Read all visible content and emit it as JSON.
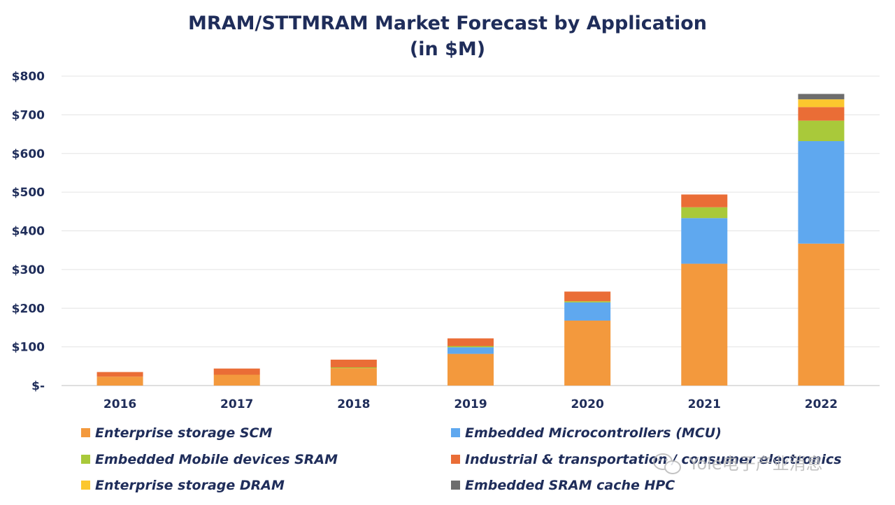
{
  "chart_data": {
    "type": "bar",
    "stacked": true,
    "title": "MRAM/STTMRAM Market Forecast by Application",
    "subtitle": "(in $M)",
    "categories": [
      "2016",
      "2017",
      "2018",
      "2019",
      "2020",
      "2021",
      "2022"
    ],
    "ylim": [
      0,
      800
    ],
    "yticks": [
      0,
      100,
      200,
      300,
      400,
      500,
      600,
      700,
      800
    ],
    "ytick_labels": [
      "$-",
      "$100",
      "$200",
      "$300",
      "$400",
      "$500",
      "$600",
      "$700",
      "$800"
    ],
    "grid": true,
    "legend_position": "bottom",
    "series": [
      {
        "name": "Enterprise storage SCM",
        "color": "#f3993d",
        "values": [
          23,
          28,
          45,
          82,
          168,
          315,
          367
        ]
      },
      {
        "name": "Embedded Microcontrollers (MCU)",
        "color": "#5fa8ef",
        "values": [
          0,
          0,
          0,
          17,
          47,
          118,
          265
        ]
      },
      {
        "name": "Embedded Mobile devices SRAM",
        "color": "#a9c93a",
        "values": [
          0,
          0,
          2,
          3,
          3,
          28,
          53
        ]
      },
      {
        "name": "Industrial & transportation / consumer electronics",
        "color": "#ea6d36",
        "values": [
          12,
          16,
          20,
          20,
          25,
          33,
          35
        ]
      },
      {
        "name": "Enterprise storage DRAM",
        "color": "#fcc72e",
        "values": [
          0,
          0,
          0,
          0,
          0,
          0,
          20
        ]
      },
      {
        "name": "Embedded SRAM cache HPC",
        "color": "#6d6d6d",
        "values": [
          0,
          0,
          0,
          0,
          0,
          0,
          14
        ]
      }
    ]
  },
  "legend": [
    {
      "label": "Enterprise storage SCM",
      "color": "#f3993d"
    },
    {
      "label": "Embedded Microcontrollers (MCU)",
      "color": "#5fa8ef"
    },
    {
      "label": "Embedded Mobile devices SRAM",
      "color": "#a9c93a"
    },
    {
      "label": "Industrial & transportation / consumer electronics",
      "color": "#ea6d36"
    },
    {
      "label": "Enterprise storage DRAM",
      "color": "#fcc72e"
    },
    {
      "label": "Embedded SRAM cache HPC",
      "color": "#6d6d6d"
    }
  ],
  "watermark": {
    "text": "Yole电子产业消息",
    "icon": "wechat-icon"
  }
}
